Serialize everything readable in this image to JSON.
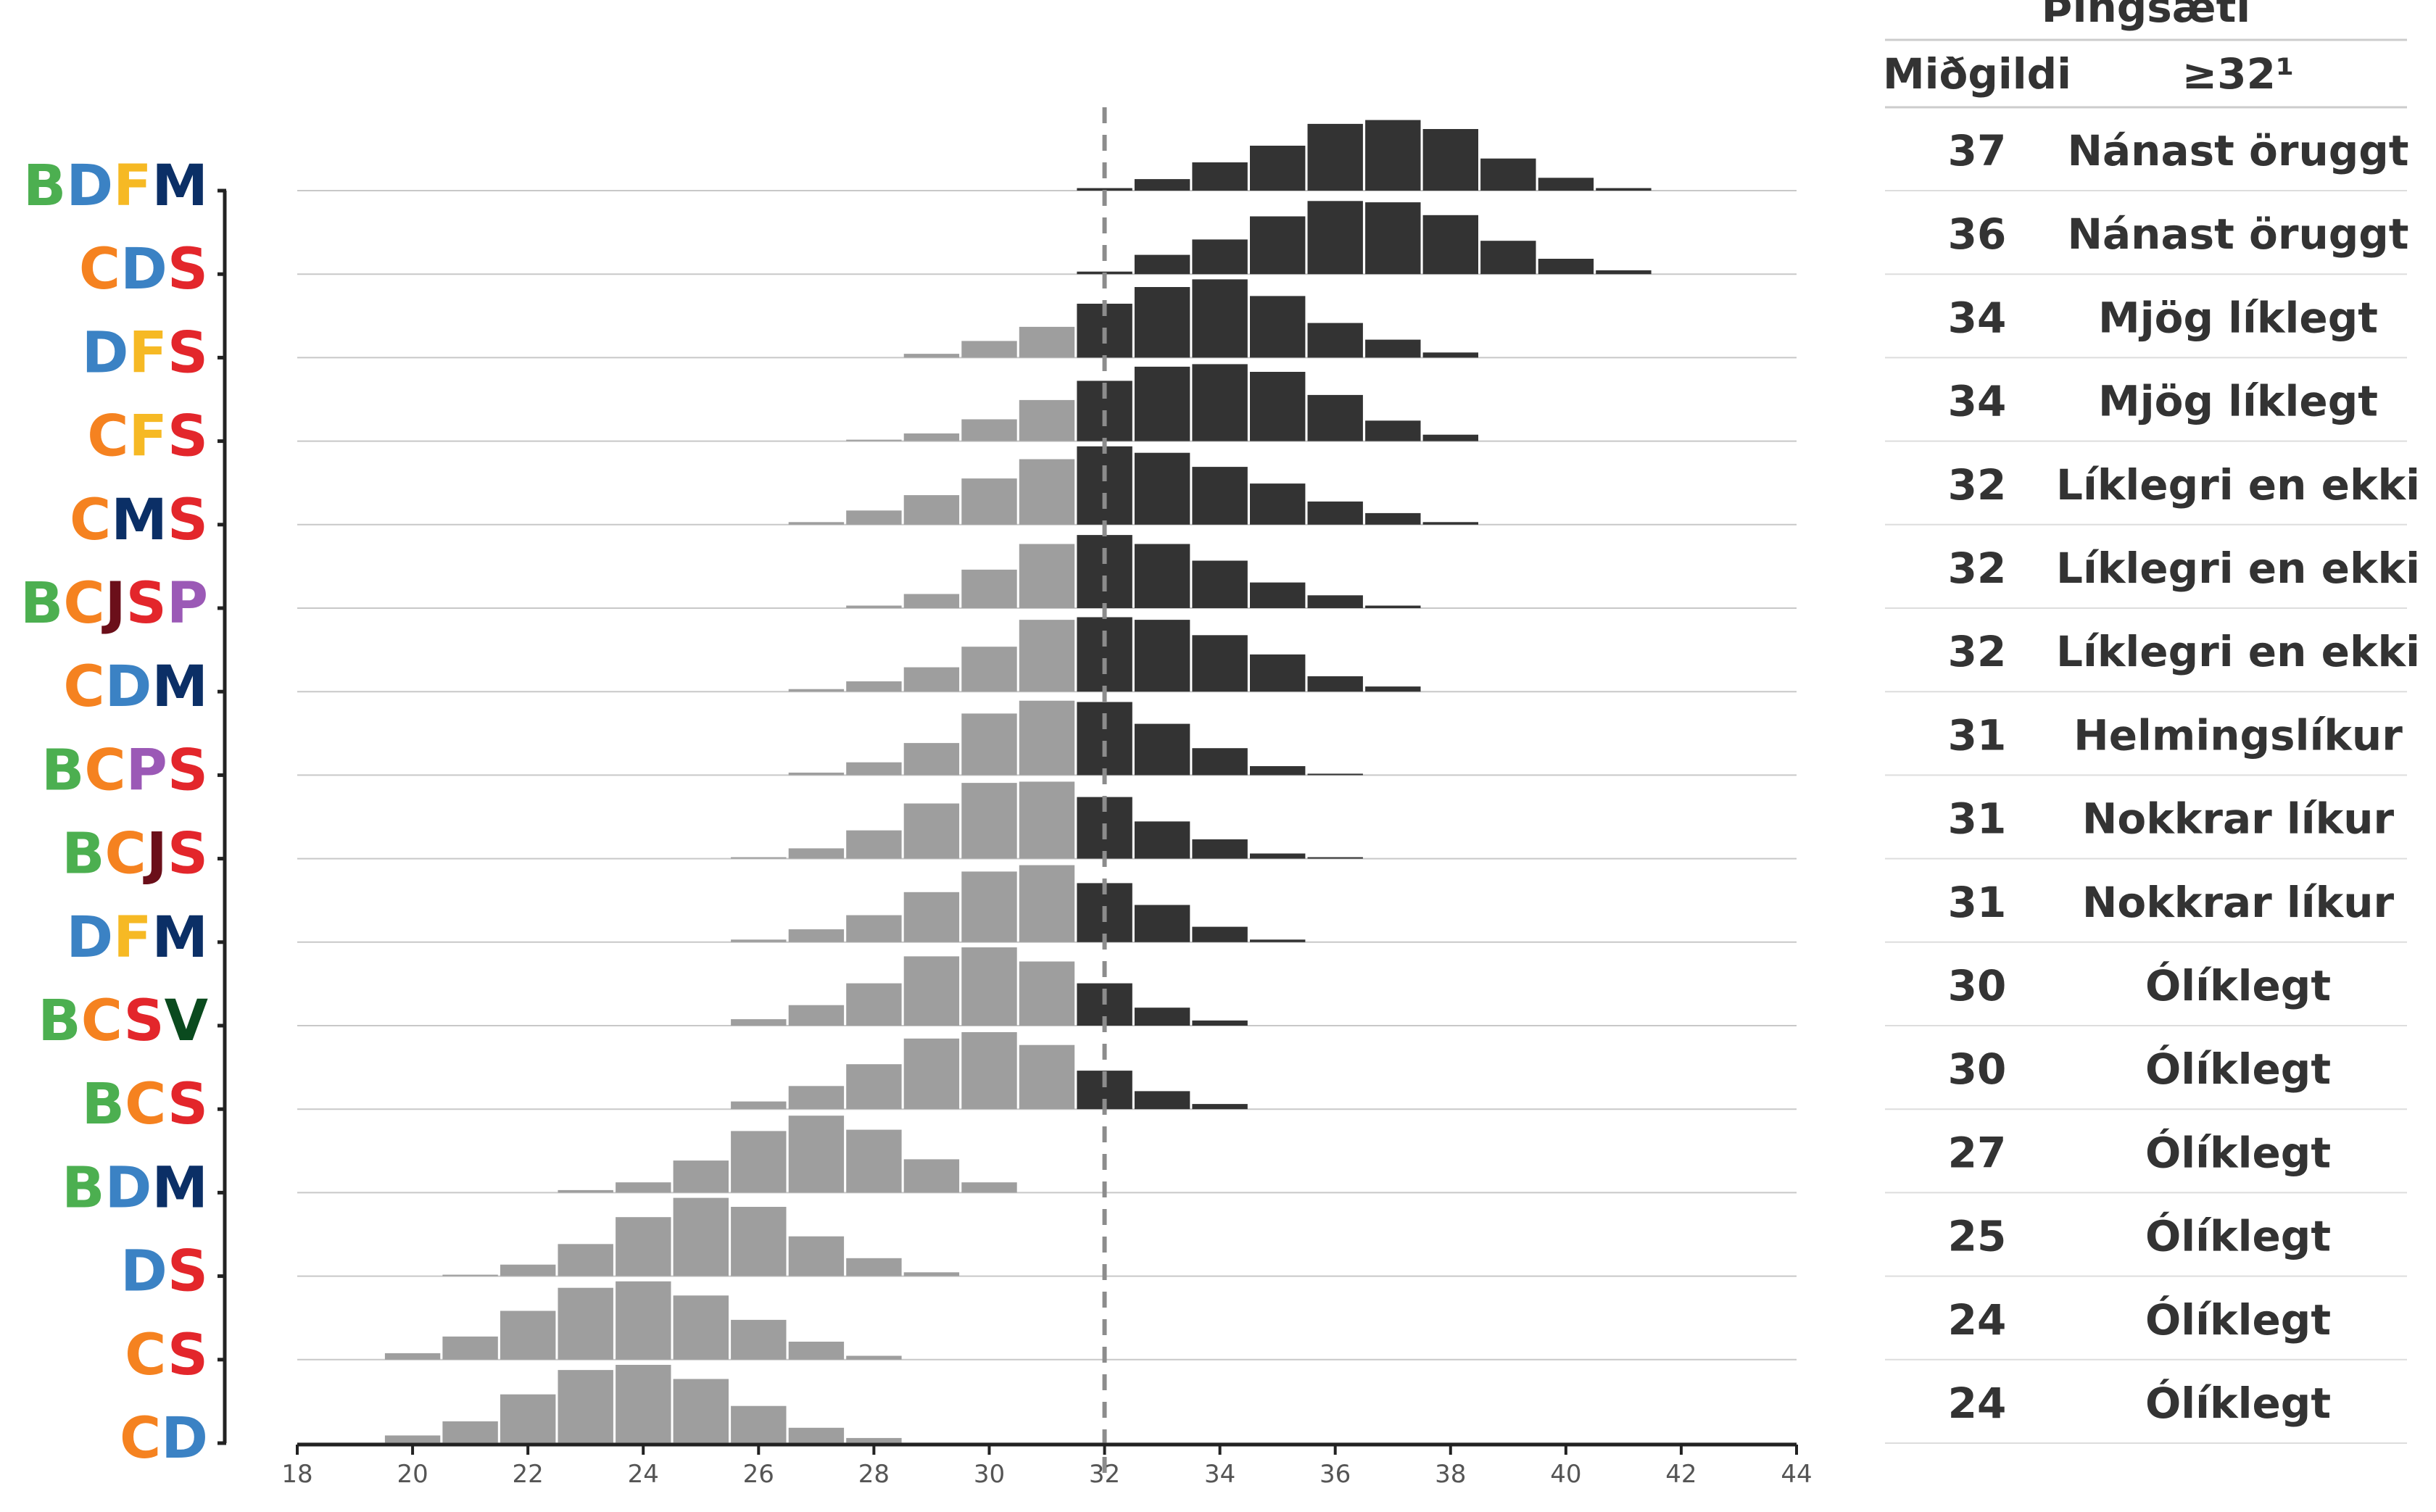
{
  "chart_data": {
    "type": "bar",
    "x_ticks": [
      18,
      20,
      22,
      24,
      26,
      28,
      30,
      32,
      34,
      36,
      38,
      40,
      42,
      44
    ],
    "xlim": [
      18,
      44
    ],
    "threshold": 32,
    "colors": {
      "below_threshold": "#9e9e9e",
      "above_threshold": "#333333",
      "threshold_line": "#8c8c8c",
      "B": "#4caf50",
      "C": "#f58220",
      "D": "#3b82c4",
      "F": "#f6b924",
      "J": "#6b0f1a",
      "M": "#0b2f66",
      "P": "#9b59b6",
      "S": "#e3262b",
      "V": "#0a4a1e"
    },
    "table": {
      "header_top": "Þingsæti",
      "col_median": "Miðgildi",
      "col_prob": "≥32¹"
    },
    "coalitions": [
      {
        "letters": "BDFM",
        "median": "37",
        "prob": "Nánast öruggt",
        "values": [
          [
            32,
            0.02
          ],
          [
            33,
            0.09
          ],
          [
            34,
            0.22
          ],
          [
            35,
            0.35
          ],
          [
            36,
            0.52
          ],
          [
            37,
            0.55
          ],
          [
            38,
            0.48
          ],
          [
            39,
            0.25
          ],
          [
            40,
            0.1
          ],
          [
            41,
            0.02
          ]
        ]
      },
      {
        "letters": "CDS",
        "median": "36",
        "prob": "Nánast öruggt",
        "values": [
          [
            32,
            0.02
          ],
          [
            33,
            0.15
          ],
          [
            34,
            0.27
          ],
          [
            35,
            0.45
          ],
          [
            36,
            0.57
          ],
          [
            37,
            0.56
          ],
          [
            38,
            0.46
          ],
          [
            39,
            0.26
          ],
          [
            40,
            0.12
          ],
          [
            41,
            0.03
          ]
        ]
      },
      {
        "letters": "DFS",
        "median": "34",
        "prob": "Mjög líklegt",
        "values": [
          [
            29,
            0.03
          ],
          [
            30,
            0.13
          ],
          [
            31,
            0.24
          ],
          [
            32,
            0.42
          ],
          [
            33,
            0.55
          ],
          [
            34,
            0.61
          ],
          [
            35,
            0.48
          ],
          [
            36,
            0.27
          ],
          [
            37,
            0.14
          ],
          [
            38,
            0.04
          ]
        ]
      },
      {
        "letters": "CFS",
        "median": "34",
        "prob": "Mjög líklegt",
        "values": [
          [
            28,
            0.01
          ],
          [
            29,
            0.06
          ],
          [
            30,
            0.17
          ],
          [
            31,
            0.32
          ],
          [
            32,
            0.47
          ],
          [
            33,
            0.58
          ],
          [
            34,
            0.6
          ],
          [
            35,
            0.54
          ],
          [
            36,
            0.36
          ],
          [
            37,
            0.16
          ],
          [
            38,
            0.05
          ]
        ]
      },
      {
        "letters": "CMS",
        "median": "32",
        "prob": "Líklegri en ekki",
        "values": [
          [
            27,
            0.02
          ],
          [
            28,
            0.11
          ],
          [
            29,
            0.23
          ],
          [
            30,
            0.36
          ],
          [
            31,
            0.51
          ],
          [
            32,
            0.61
          ],
          [
            33,
            0.56
          ],
          [
            34,
            0.45
          ],
          [
            35,
            0.32
          ],
          [
            36,
            0.18
          ],
          [
            37,
            0.09
          ],
          [
            38,
            0.02
          ]
        ]
      },
      {
        "letters": "BCJSP",
        "median": "32",
        "prob": "Líklegri en ekki",
        "values": [
          [
            28,
            0.02
          ],
          [
            29,
            0.11
          ],
          [
            30,
            0.3
          ],
          [
            31,
            0.5
          ],
          [
            32,
            0.57
          ],
          [
            33,
            0.5
          ],
          [
            34,
            0.37
          ],
          [
            35,
            0.2
          ],
          [
            36,
            0.1
          ],
          [
            37,
            0.02
          ]
        ]
      },
      {
        "letters": "CDM",
        "median": "32",
        "prob": "Líklegri en ekki",
        "values": [
          [
            27,
            0.02
          ],
          [
            28,
            0.08
          ],
          [
            29,
            0.19
          ],
          [
            30,
            0.35
          ],
          [
            31,
            0.56
          ],
          [
            32,
            0.58
          ],
          [
            33,
            0.56
          ],
          [
            34,
            0.44
          ],
          [
            35,
            0.29
          ],
          [
            36,
            0.12
          ],
          [
            37,
            0.04
          ]
        ]
      },
      {
        "letters": "BCPS",
        "median": "31",
        "prob": "Helmingslíkur",
        "values": [
          [
            27,
            0.02
          ],
          [
            28,
            0.1
          ],
          [
            29,
            0.25
          ],
          [
            30,
            0.48
          ],
          [
            31,
            0.58
          ],
          [
            32,
            0.57
          ],
          [
            33,
            0.4
          ],
          [
            34,
            0.21
          ],
          [
            35,
            0.07
          ],
          [
            36,
            0.01
          ]
        ]
      },
      {
        "letters": "BCJS",
        "median": "31",
        "prob": "Nokkrar líkur",
        "values": [
          [
            26,
            0.01
          ],
          [
            27,
            0.08
          ],
          [
            28,
            0.22
          ],
          [
            29,
            0.43
          ],
          [
            30,
            0.59
          ],
          [
            31,
            0.6
          ],
          [
            32,
            0.48
          ],
          [
            33,
            0.29
          ],
          [
            34,
            0.15
          ],
          [
            35,
            0.04
          ],
          [
            36,
            0.01
          ]
        ]
      },
      {
        "letters": "DFM",
        "median": "31",
        "prob": "Nokkrar líkur",
        "values": [
          [
            26,
            0.02
          ],
          [
            27,
            0.1
          ],
          [
            28,
            0.21
          ],
          [
            29,
            0.39
          ],
          [
            30,
            0.55
          ],
          [
            31,
            0.6
          ],
          [
            32,
            0.46
          ],
          [
            33,
            0.29
          ],
          [
            34,
            0.12
          ],
          [
            35,
            0.02
          ]
        ]
      },
      {
        "letters": "BCSV",
        "median": "30",
        "prob": "Ólíklegt",
        "values": [
          [
            26,
            0.05
          ],
          [
            27,
            0.16
          ],
          [
            28,
            0.33
          ],
          [
            29,
            0.54
          ],
          [
            30,
            0.61
          ],
          [
            31,
            0.5
          ],
          [
            32,
            0.33
          ],
          [
            33,
            0.14
          ],
          [
            34,
            0.04
          ]
        ]
      },
      {
        "letters": "BCS",
        "median": "30",
        "prob": "Ólíklegt",
        "values": [
          [
            26,
            0.06
          ],
          [
            27,
            0.18
          ],
          [
            28,
            0.35
          ],
          [
            29,
            0.55
          ],
          [
            30,
            0.6
          ],
          [
            31,
            0.5
          ],
          [
            32,
            0.3
          ],
          [
            33,
            0.14
          ],
          [
            34,
            0.04
          ]
        ]
      },
      {
        "letters": "BDM",
        "median": "27",
        "prob": "Ólíklegt",
        "values": [
          [
            23,
            0.02
          ],
          [
            24,
            0.08
          ],
          [
            25,
            0.25
          ],
          [
            26,
            0.48
          ],
          [
            27,
            0.6
          ],
          [
            28,
            0.49
          ],
          [
            29,
            0.26
          ],
          [
            30,
            0.08
          ]
        ]
      },
      {
        "letters": "DS",
        "median": "25",
        "prob": "Ólíklegt",
        "values": [
          [
            21,
            0.01
          ],
          [
            22,
            0.09
          ],
          [
            23,
            0.25
          ],
          [
            24,
            0.46
          ],
          [
            25,
            0.61
          ],
          [
            26,
            0.54
          ],
          [
            27,
            0.31
          ],
          [
            28,
            0.14
          ],
          [
            29,
            0.03
          ]
        ]
      },
      {
        "letters": "CS",
        "median": "24",
        "prob": "Ólíklegt",
        "values": [
          [
            20,
            0.05
          ],
          [
            21,
            0.18
          ],
          [
            22,
            0.38
          ],
          [
            23,
            0.56
          ],
          [
            24,
            0.61
          ],
          [
            25,
            0.5
          ],
          [
            26,
            0.31
          ],
          [
            27,
            0.14
          ],
          [
            28,
            0.03
          ]
        ]
      },
      {
        "letters": "CD",
        "median": "24",
        "prob": "Ólíklegt",
        "values": [
          [
            20,
            0.06
          ],
          [
            21,
            0.17
          ],
          [
            22,
            0.38
          ],
          [
            23,
            0.57
          ],
          [
            24,
            0.61
          ],
          [
            25,
            0.5
          ],
          [
            26,
            0.29
          ],
          [
            27,
            0.12
          ],
          [
            28,
            0.04
          ]
        ]
      }
    ]
  }
}
